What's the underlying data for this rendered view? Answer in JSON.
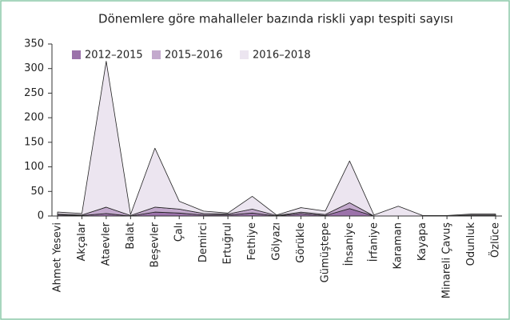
{
  "chart_data": {
    "type": "stacked_area",
    "title": "Dönemlere göre mahalleler bazında riskli yapı tespiti sayısı",
    "categories": [
      "Ahmet Yesevi",
      "Akçalar",
      "Ataevler",
      "Balat",
      "Beşevler",
      "Çalı",
      "Demirci",
      "Ertuğrul",
      "Fethiye",
      "Gölyazı",
      "Görükle",
      "Gümüştepe",
      "İhsaniye",
      "İrfaniye",
      "Karaman",
      "Kayapa",
      "Minareli Çavuş",
      "Odunluk",
      "Özlüce"
    ],
    "series": [
      {
        "name": "2012–2015",
        "color": "#9b72aa",
        "values": [
          2,
          1,
          5,
          0,
          8,
          6,
          2,
          2,
          6,
          0,
          5,
          1,
          15,
          0,
          0,
          0,
          0,
          1,
          1
        ]
      },
      {
        "name": "2015–2016",
        "color": "#c3a9cd",
        "values": [
          2,
          1,
          13,
          1,
          10,
          8,
          3,
          2,
          8,
          1,
          3,
          2,
          12,
          0,
          0,
          0,
          0,
          1,
          1
        ]
      },
      {
        "name": "2016–2018",
        "color": "#ece5f0",
        "values": [
          4,
          3,
          297,
          2,
          120,
          16,
          5,
          2,
          26,
          1,
          9,
          7,
          85,
          2,
          20,
          1,
          1,
          2,
          2
        ]
      }
    ],
    "ylim": [
      0,
      350
    ],
    "yticks": [
      0,
      50,
      100,
      150,
      200,
      250,
      300,
      350
    ],
    "legend": "top-left"
  }
}
